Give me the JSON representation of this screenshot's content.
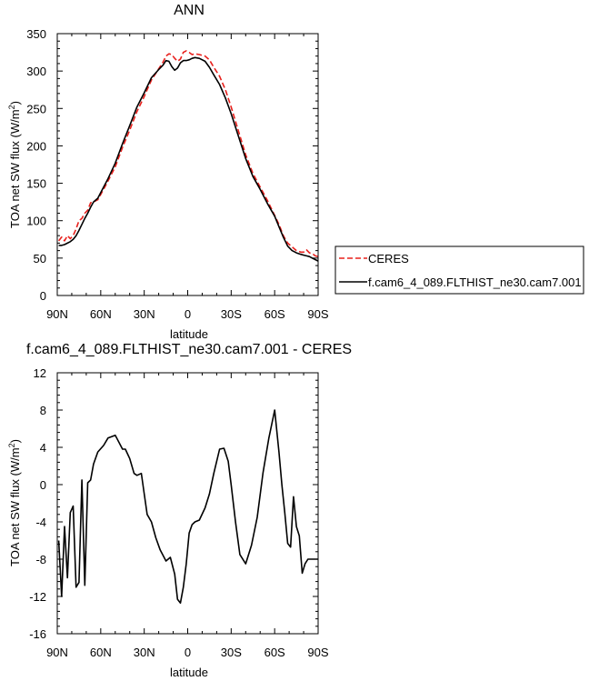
{
  "chart_data": [
    {
      "type": "line",
      "title": "ANN",
      "xlabel": "latitude",
      "ylabel_main": "TOA net SW flux (W/m",
      "ylabel_sup": "2",
      "ylabel_close": ")",
      "xlim": [
        -90,
        90
      ],
      "ylim": [
        0,
        350
      ],
      "xticks": [
        -90,
        -60,
        -30,
        0,
        30,
        60,
        90
      ],
      "xtick_labels": [
        "90N",
        "60N",
        "30N",
        "0",
        "30S",
        "60S",
        "90S"
      ],
      "yticks": [
        0,
        50,
        100,
        150,
        200,
        250,
        300,
        350
      ],
      "ytick_labels": [
        "0",
        "50",
        "100",
        "150",
        "200",
        "250",
        "300",
        "350"
      ],
      "grid": false,
      "legend_position": "right",
      "series": [
        {
          "name": "CERES",
          "color": "#e8201c",
          "dash": "dashed",
          "x": [
            -89,
            -87,
            -85,
            -83,
            -81,
            -79,
            -77,
            -75,
            -73,
            -71,
            -69,
            -67,
            -65,
            -62,
            -58,
            -55,
            -50,
            -45,
            -40,
            -35,
            -30,
            -25,
            -20,
            -17,
            -15,
            -13,
            -11,
            -9,
            -7,
            -5,
            -3,
            -1,
            1,
            3,
            5,
            8,
            12,
            15,
            18,
            22,
            26,
            30,
            35,
            40,
            45,
            50,
            55,
            60,
            63,
            66,
            69,
            72,
            75,
            78,
            80,
            82,
            84,
            86,
            88,
            90
          ],
          "y": [
            73,
            78,
            73,
            80,
            76,
            80,
            89,
            100,
            103,
            110,
            114,
            124,
            125,
            128,
            142,
            153,
            172,
            198,
            221,
            246,
            266,
            288,
            303,
            312,
            320,
            323,
            322,
            317,
            313,
            316,
            325,
            327,
            325,
            322,
            323,
            322,
            320,
            315,
            305,
            293,
            275,
            252,
            220,
            188,
            163,
            145,
            127,
            107,
            95,
            80,
            70,
            65,
            60,
            58,
            58,
            61,
            57,
            56,
            53,
            52
          ]
        },
        {
          "name": "f.cam6_4_089.FLTHIST_ne30.cam7.001",
          "color": "#000000",
          "dash": "solid",
          "x": [
            -89,
            -87,
            -85,
            -83,
            -81,
            -79,
            -77,
            -75,
            -73,
            -71,
            -69,
            -67,
            -65,
            -62,
            -58,
            -55,
            -50,
            -45,
            -40,
            -35,
            -30,
            -25,
            -20,
            -17,
            -15,
            -13,
            -11,
            -9,
            -7,
            -5,
            -3,
            -1,
            1,
            3,
            5,
            8,
            12,
            15,
            18,
            22,
            26,
            30,
            35,
            40,
            45,
            50,
            55,
            60,
            63,
            66,
            69,
            72,
            75,
            78,
            80,
            82,
            84,
            86,
            88,
            90
          ],
          "y": [
            67,
            67,
            68,
            70,
            72,
            75,
            80,
            87,
            95,
            103,
            110,
            118,
            125,
            130,
            145,
            156,
            177,
            203,
            227,
            252,
            271,
            291,
            302,
            308,
            314,
            313,
            306,
            301,
            304,
            311,
            314,
            314,
            315,
            317,
            318,
            317,
            313,
            305,
            295,
            282,
            264,
            243,
            213,
            183,
            159,
            142,
            123,
            106,
            92,
            78,
            66,
            60,
            57,
            55,
            54,
            53,
            52,
            50,
            48,
            46
          ]
        }
      ]
    },
    {
      "type": "line",
      "title": "f.cam6_4_089.FLTHIST_ne30.cam7.001 - CERES",
      "xlabel": "latitude",
      "ylabel_main": "TOA net SW flux (W/m",
      "ylabel_sup": "2",
      "ylabel_close": ")",
      "xlim": [
        -90,
        90
      ],
      "ylim": [
        -16,
        12
      ],
      "xticks": [
        -90,
        -60,
        -30,
        0,
        30,
        60,
        90
      ],
      "xtick_labels": [
        "90N",
        "60N",
        "30N",
        "0",
        "30S",
        "60S",
        "90S"
      ],
      "yticks": [
        -16,
        -12,
        -8,
        -4,
        0,
        4,
        8,
        12
      ],
      "ytick_labels": [
        "-16",
        "-12",
        "-8",
        "-4",
        "0",
        "4",
        "8",
        "12"
      ],
      "grid": false,
      "series": [
        {
          "color": "#000000",
          "dash": "solid",
          "x": [
            -89,
            -87,
            -85,
            -83,
            -81,
            -79,
            -77,
            -75,
            -73,
            -71,
            -69,
            -67,
            -65,
            -62,
            -58,
            -55,
            -50,
            -45,
            -43,
            -40,
            -37,
            -35,
            -32,
            -30,
            -28,
            -25,
            -22,
            -19,
            -15,
            -12,
            -9,
            -7,
            -5,
            -3,
            -1,
            1,
            3,
            5,
            8,
            12,
            15,
            18,
            22,
            25,
            28,
            30,
            33,
            36,
            40,
            44,
            48,
            52,
            56,
            60,
            63,
            65,
            67,
            69,
            71,
            73,
            75,
            77,
            79,
            81,
            83,
            85,
            87,
            89,
            90
          ],
          "y": [
            -6,
            -12,
            -4.5,
            -10,
            -3,
            -2.3,
            -11,
            -10.5,
            0.5,
            -10.8,
            0.2,
            0.5,
            2.2,
            3.5,
            4.2,
            5,
            5.3,
            3.8,
            3.8,
            2.8,
            1.2,
            1,
            1.2,
            -1,
            -3.2,
            -4,
            -5.7,
            -7,
            -8.2,
            -7.8,
            -9.6,
            -12.3,
            -12.7,
            -11,
            -8.5,
            -5.2,
            -4.3,
            -4,
            -3.8,
            -2.5,
            -1,
            1.2,
            3.8,
            3.9,
            2.5,
            0,
            -4,
            -7.5,
            -8.5,
            -6.5,
            -3.5,
            1.3,
            5,
            8,
            3.5,
            0,
            -3,
            -6.3,
            -6.7,
            -1.3,
            -4.5,
            -5.5,
            -9.5,
            -8.5,
            -8,
            -8,
            -8,
            -8,
            -8
          ]
        }
      ]
    }
  ]
}
